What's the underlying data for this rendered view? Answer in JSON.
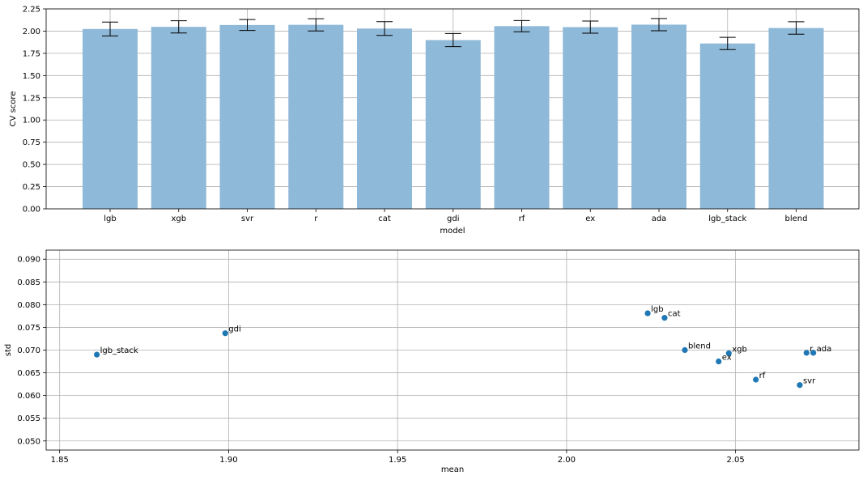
{
  "chart_data": [
    {
      "type": "bar",
      "xlabel": "model",
      "ylabel": "CV score",
      "ylim": [
        0,
        2.25
      ],
      "yticks": [
        "0.00",
        "0.25",
        "0.50",
        "0.75",
        "1.00",
        "1.25",
        "1.50",
        "1.75",
        "2.00",
        "2.25"
      ],
      "grid": true,
      "bar_color": "#8fb9d8",
      "categories": [
        "lgb",
        "xgb",
        "svr",
        "r",
        "cat",
        "gdi",
        "rf",
        "ex",
        "ada",
        "lgb_stack",
        "blend"
      ],
      "values": [
        2.024,
        2.048,
        2.069,
        2.071,
        2.029,
        1.899,
        2.056,
        2.045,
        2.073,
        1.861,
        2.035
      ],
      "error": [
        0.078,
        0.069,
        0.062,
        0.069,
        0.077,
        0.074,
        0.063,
        0.068,
        0.069,
        0.069,
        0.07
      ]
    },
    {
      "type": "scatter",
      "xlabel": "mean",
      "ylabel": "std",
      "xlim": [
        1.846,
        2.0865
      ],
      "ylim": [
        0.048,
        0.092
      ],
      "xticks": [
        "1.85",
        "1.90",
        "1.95",
        "2.00",
        "2.05"
      ],
      "yticks": [
        "0.050",
        "0.055",
        "0.060",
        "0.065",
        "0.070",
        "0.075",
        "0.080",
        "0.085",
        "0.090"
      ],
      "grid": true,
      "point_color": "#1f77b4",
      "points": [
        {
          "label": "lgb",
          "x": 2.024,
          "y": 0.0781
        },
        {
          "label": "xgb",
          "x": 2.048,
          "y": 0.0693
        },
        {
          "label": "svr",
          "x": 2.069,
          "y": 0.0623
        },
        {
          "label": "r",
          "x": 2.071,
          "y": 0.0694
        },
        {
          "label": "cat",
          "x": 2.029,
          "y": 0.0771
        },
        {
          "label": "gdi",
          "x": 1.899,
          "y": 0.0737
        },
        {
          "label": "rf",
          "x": 2.056,
          "y": 0.0635
        },
        {
          "label": "ex",
          "x": 2.045,
          "y": 0.0675
        },
        {
          "label": "ada",
          "x": 2.073,
          "y": 0.0694
        },
        {
          "label": "lgb_stack",
          "x": 1.861,
          "y": 0.069
        },
        {
          "label": "blend",
          "x": 2.035,
          "y": 0.07
        }
      ]
    }
  ]
}
